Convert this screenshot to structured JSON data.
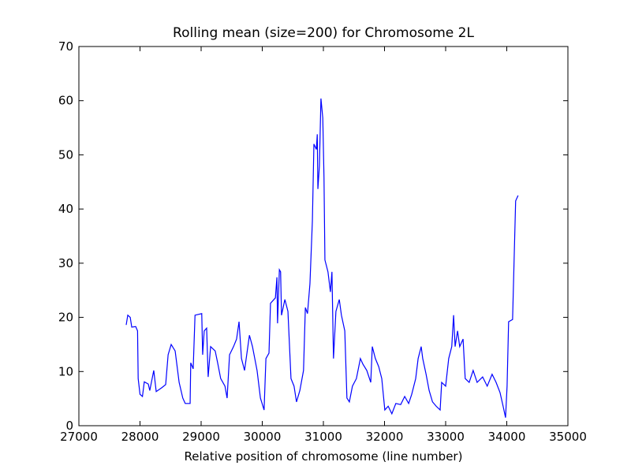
{
  "chart_data": {
    "type": "line",
    "title": "Rolling mean (size=200) for Chromosome 2L",
    "x_label": "Relative position of chromosome (line number)",
    "color": "#0000ff",
    "x": [
      27774,
      27800,
      27840,
      27865,
      27930,
      27960,
      27970,
      28000,
      28040,
      28070,
      28135,
      28160,
      28225,
      28265,
      28355,
      28420,
      28460,
      28510,
      28575,
      28640,
      28700,
      28740,
      28820,
      28830,
      28870,
      28900,
      29010,
      29025,
      29050,
      29090,
      29115,
      29155,
      29230,
      29270,
      29320,
      29390,
      29425,
      29465,
      29530,
      29580,
      29620,
      29660,
      29710,
      29790,
      29840,
      29915,
      29970,
      30030,
      30060,
      30110,
      30135,
      30215,
      30240,
      30250,
      30280,
      30300,
      30315,
      30370,
      30420,
      30470,
      30520,
      30560,
      30615,
      30675,
      30705,
      30740,
      30780,
      30820,
      30845,
      30885,
      30900,
      30910,
      30935,
      30960,
      30990,
      31010,
      31025,
      31075,
      31115,
      31140,
      31165,
      31205,
      31260,
      31295,
      31350,
      31385,
      31425,
      31475,
      31540,
      31605,
      31645,
      31710,
      31775,
      31800,
      31850,
      31905,
      31955,
      32005,
      32060,
      32120,
      32185,
      32265,
      32330,
      32395,
      32445,
      32510,
      32550,
      32600,
      32625,
      32680,
      32730,
      32785,
      32845,
      32910,
      32935,
      33000,
      33050,
      33100,
      33130,
      33155,
      33195,
      33230,
      33285,
      33320,
      33385,
      33450,
      33515,
      33605,
      33680,
      33760,
      33825,
      33890,
      33940,
      33980,
      34005,
      34030,
      34095,
      34120,
      34145,
      34185
    ],
    "values": [
      18.6,
      20.4,
      20,
      18.2,
      18.3,
      17.5,
      8.7,
      5.8,
      5.4,
      8.1,
      7.7,
      6.5,
      10.2,
      6.3,
      7,
      7.6,
      13.1,
      15,
      13.8,
      8,
      5.1,
      4.1,
      4.1,
      11.6,
      10.5,
      20.4,
      20.7,
      13.1,
      17.5,
      18,
      9,
      14.6,
      13.8,
      11.6,
      8.7,
      7.3,
      5.1,
      13.1,
      14.6,
      16,
      19.2,
      12.4,
      10.2,
      16.7,
      14.6,
      10.2,
      5.1,
      2.9,
      12.4,
      13.4,
      22.6,
      23.6,
      27.4,
      18.9,
      28.8,
      28.4,
      20.4,
      23.3,
      21.1,
      8.7,
      7.3,
      4.4,
      6.5,
      10.2,
      21.8,
      20.7,
      26.2,
      37.8,
      52,
      51,
      53.8,
      43.7,
      48,
      60.4,
      56.8,
      45.8,
      30.6,
      28.4,
      24.7,
      28.4,
      12.4,
      21.1,
      23.3,
      20.4,
      17.5,
      5.1,
      4.4,
      7.3,
      8.7,
      12.4,
      11.4,
      10.2,
      8,
      14.6,
      12.4,
      10.9,
      8.7,
      2.9,
      3.6,
      2.2,
      4.1,
      3.9,
      5.4,
      4.1,
      5.8,
      8.7,
      12.4,
      14.6,
      12.4,
      9.5,
      6.5,
      4.4,
      3.6,
      2.9,
      8,
      7.3,
      12.4,
      14.6,
      20.4,
      14.6,
      17.5,
      14.6,
      16,
      8.7,
      8,
      10.2,
      8,
      9,
      7.3,
      9.5,
      8,
      6.1,
      3.6,
      1.5,
      7.3,
      19.2,
      19.6,
      30.6,
      41.5,
      42.5
    ],
    "xlim": [
      27000,
      35000
    ],
    "xticks": [
      27000,
      28000,
      29000,
      30000,
      31000,
      32000,
      33000,
      34000,
      35000
    ],
    "ylim": [
      0,
      70
    ],
    "yticks": [
      0,
      10,
      20,
      30,
      40,
      50,
      60,
      70
    ]
  }
}
